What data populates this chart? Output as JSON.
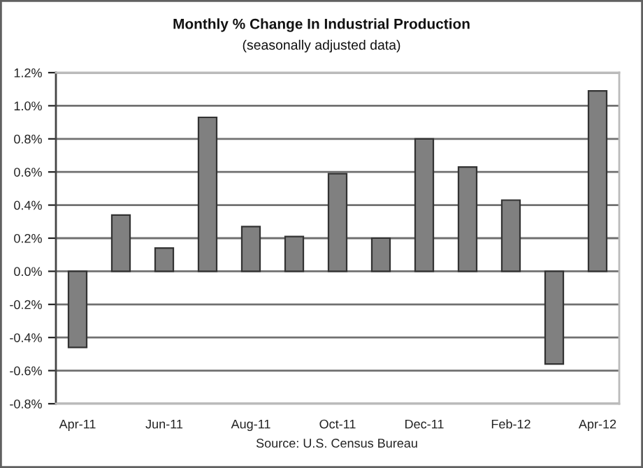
{
  "chart_data": {
    "type": "bar",
    "title": "Monthly % Change In Industrial Production",
    "subtitle": "(seasonally adjusted data)",
    "categories": [
      "Apr-11",
      null,
      "Jun-11",
      null,
      "Aug-11",
      null,
      "Oct-11",
      null,
      "Dec-11",
      null,
      "Feb-12",
      null,
      "Apr-12"
    ],
    "values": [
      -0.46,
      0.34,
      0.14,
      0.93,
      0.27,
      0.21,
      0.59,
      0.2,
      0.8,
      0.63,
      0.43,
      -0.56,
      1.09
    ],
    "color": "#808080",
    "ylim": [
      -0.8,
      1.2
    ],
    "yticks": [
      {
        "value": -0.8,
        "label": "-0.8%"
      },
      {
        "value": -0.6,
        "label": "-0.6%"
      },
      {
        "value": -0.4,
        "label": "-0.4%"
      },
      {
        "value": -0.2,
        "label": "-0.2%"
      },
      {
        "value": 0,
        "label": "0.0%"
      },
      {
        "value": 0.2,
        "label": "0.2%"
      },
      {
        "value": 0.4,
        "label": "0.4%"
      },
      {
        "value": 0.6,
        "label": "0.6%"
      },
      {
        "value": 0.8,
        "label": "0.8%"
      },
      {
        "value": 1.0,
        "label": "1.0%"
      },
      {
        "value": 1.2,
        "label": "1.2%"
      }
    ],
    "grid": "y",
    "annotations": [
      "Source: U.S. Census Bureau"
    ]
  }
}
